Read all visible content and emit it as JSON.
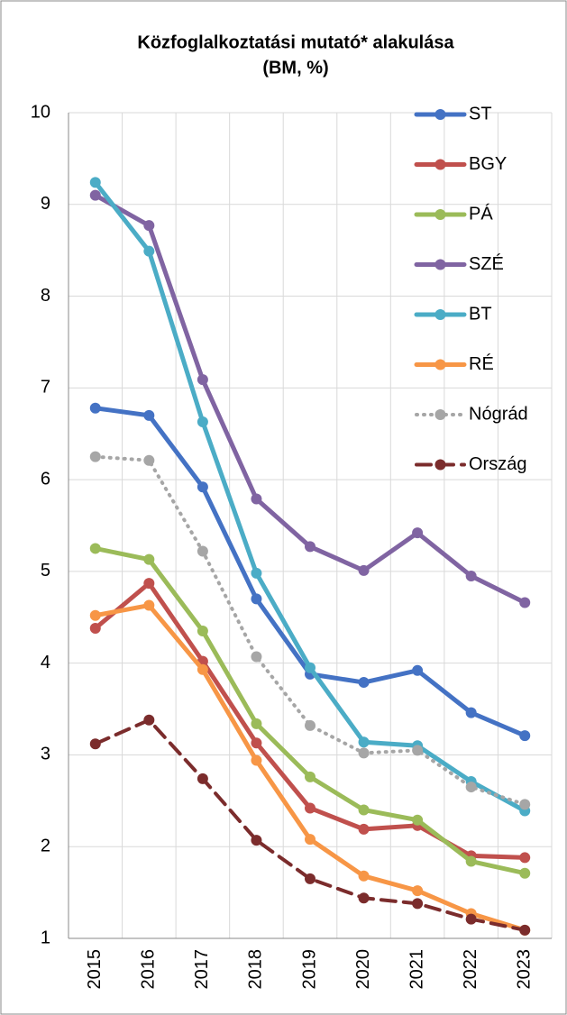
{
  "chart_data": {
    "type": "line",
    "title": "Közfoglalkoztatási mutató* alakulása",
    "subtitle": "(BM, %)",
    "categories": [
      "2015",
      "2016",
      "2017",
      "2018",
      "2019",
      "2020",
      "2021",
      "2022",
      "2023"
    ],
    "series": [
      {
        "name": "ST",
        "color": "#4472c4",
        "dash": "solid",
        "values": [
          6.78,
          6.7,
          5.92,
          4.7,
          3.88,
          3.79,
          3.92,
          3.46,
          3.21
        ]
      },
      {
        "name": "BGY",
        "color": "#c0504d",
        "dash": "solid",
        "values": [
          4.38,
          4.87,
          4.02,
          3.13,
          2.42,
          2.19,
          2.23,
          1.9,
          1.88
        ]
      },
      {
        "name": "PÁ",
        "color": "#9bbb59",
        "dash": "solid",
        "values": [
          5.25,
          5.13,
          4.35,
          3.34,
          2.76,
          2.4,
          2.29,
          1.84,
          1.71
        ]
      },
      {
        "name": "SZÉ",
        "color": "#8064a2",
        "dash": "solid",
        "values": [
          9.1,
          8.77,
          7.09,
          5.79,
          5.27,
          5.01,
          5.42,
          4.95,
          4.66
        ]
      },
      {
        "name": "BT",
        "color": "#4bacc6",
        "dash": "solid",
        "values": [
          9.24,
          8.49,
          6.63,
          4.98,
          3.95,
          3.14,
          3.1,
          2.71,
          2.39
        ]
      },
      {
        "name": "RÉ",
        "color": "#f79646",
        "dash": "solid",
        "values": [
          4.52,
          4.63,
          3.93,
          2.94,
          2.08,
          1.68,
          1.52,
          1.27,
          1.09
        ]
      },
      {
        "name": "Nógrád",
        "color": "#a6a6a6",
        "dash": "dotted",
        "values": [
          6.25,
          6.21,
          5.22,
          4.07,
          3.32,
          3.02,
          3.05,
          2.65,
          2.46
        ]
      },
      {
        "name": "Ország",
        "color": "#7b2c2c",
        "dash": "dashed",
        "values": [
          3.12,
          3.38,
          2.74,
          2.07,
          1.65,
          1.44,
          1.38,
          1.21,
          1.09
        ]
      }
    ],
    "ylim": [
      1,
      10
    ],
    "yticks": [
      1,
      2,
      3,
      4,
      5,
      6,
      7,
      8,
      9,
      10
    ],
    "grid": true,
    "legend": "upper right"
  }
}
